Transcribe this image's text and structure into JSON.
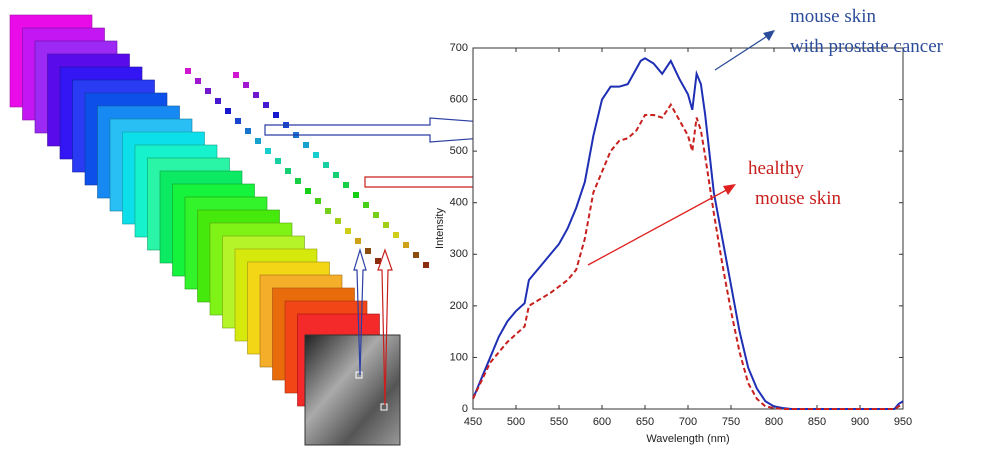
{
  "chart_data": {
    "type": "line",
    "x_label": "Wavelength (nm)",
    "y_label": "Intensity",
    "xlim": [
      450,
      950
    ],
    "xticks": [
      450,
      500,
      550,
      600,
      650,
      700,
      750,
      800,
      850,
      900,
      950
    ],
    "ylim": [
      0,
      700
    ],
    "yticks": [
      0,
      100,
      200,
      300,
      400,
      500,
      600,
      700
    ],
    "annotations": [
      "mouse skin",
      "with prostate cancer",
      "healthy",
      "mouse skin"
    ],
    "series": [
      {
        "color": "#1f2fb5",
        "dash": false,
        "x": [
          450,
          460,
          470,
          480,
          490,
          500,
          510,
          515,
          520,
          530,
          540,
          550,
          560,
          570,
          580,
          590,
          600,
          610,
          620,
          630,
          640,
          645,
          650,
          660,
          670,
          680,
          690,
          700,
          705,
          710,
          715,
          720,
          730,
          740,
          750,
          760,
          770,
          780,
          790,
          800,
          810,
          820,
          900,
          940,
          945,
          950
        ],
        "values": [
          20,
          60,
          100,
          140,
          170,
          190,
          205,
          250,
          260,
          280,
          300,
          320,
          350,
          390,
          440,
          530,
          600,
          625,
          625,
          630,
          660,
          675,
          680,
          670,
          650,
          675,
          640,
          610,
          580,
          650,
          630,
          570,
          420,
          330,
          240,
          150,
          80,
          40,
          15,
          5,
          2,
          0,
          0,
          0,
          10,
          15
        ]
      },
      {
        "color": "#c8201e",
        "dash": true,
        "x": [
          450,
          470,
          490,
          510,
          515,
          520,
          540,
          560,
          570,
          580,
          590,
          600,
          610,
          620,
          630,
          640,
          650,
          660,
          670,
          680,
          690,
          700,
          705,
          710,
          715,
          720,
          730,
          740,
          750,
          760,
          770,
          780,
          790,
          800,
          810,
          900,
          940,
          950
        ],
        "values": [
          20,
          90,
          130,
          160,
          200,
          205,
          225,
          250,
          270,
          330,
          420,
          460,
          500,
          520,
          525,
          540,
          570,
          570,
          565,
          590,
          560,
          530,
          500,
          565,
          540,
          490,
          380,
          280,
          190,
          110,
          50,
          20,
          5,
          2,
          0,
          0,
          0,
          10
        ]
      }
    ]
  }
}
